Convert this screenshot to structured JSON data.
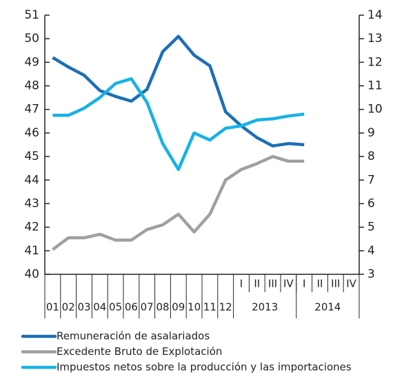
{
  "chart_data": {
    "type": "line",
    "categories": [
      "01",
      "02",
      "03",
      "04",
      "05",
      "06",
      "07",
      "08",
      "09",
      "10",
      "11",
      "12",
      "I",
      "II",
      "III",
      "IV",
      "I",
      "II",
      "III",
      "IV"
    ],
    "x_groups": [
      {
        "label": "2013",
        "size": 4
      },
      {
        "label": "2014",
        "size": 4
      }
    ],
    "ylim": [
      40,
      51
    ],
    "yticks": [
      40,
      41,
      42,
      43,
      44,
      45,
      46,
      47,
      48,
      49,
      50,
      51
    ],
    "y2lim": [
      3,
      14
    ],
    "y2ticks": [
      3,
      4,
      5,
      6,
      7,
      8,
      9,
      10,
      11,
      12,
      13,
      14
    ],
    "series": [
      {
        "name": "Remuneración de asalariados",
        "color": "#1c6fb5",
        "axis": "y",
        "values": [
          49.2,
          48.8,
          48.45,
          47.8,
          47.55,
          47.35,
          47.85,
          49.45,
          50.1,
          49.3,
          48.85,
          46.9,
          46.3,
          45.8,
          45.45,
          45.55,
          45.5,
          null,
          null,
          null
        ]
      },
      {
        "name": "Excedente Bruto de Explotación",
        "color": "#a0a0a0",
        "axis": "y",
        "values": [
          41.05,
          41.55,
          41.55,
          41.7,
          41.45,
          41.45,
          41.9,
          42.1,
          42.55,
          41.8,
          42.55,
          44.0,
          44.45,
          44.7,
          45.0,
          44.8,
          44.8,
          null,
          null,
          null
        ]
      },
      {
        "name": "Impuestos netos sobre la producción y las importaciones",
        "color": "#15b2e6",
        "axis": "y2",
        "values": [
          9.75,
          9.75,
          10.05,
          10.5,
          11.1,
          11.3,
          10.3,
          8.55,
          7.45,
          9.0,
          8.7,
          9.2,
          9.3,
          9.55,
          9.6,
          9.72,
          9.8,
          null,
          null,
          null
        ]
      }
    ]
  }
}
